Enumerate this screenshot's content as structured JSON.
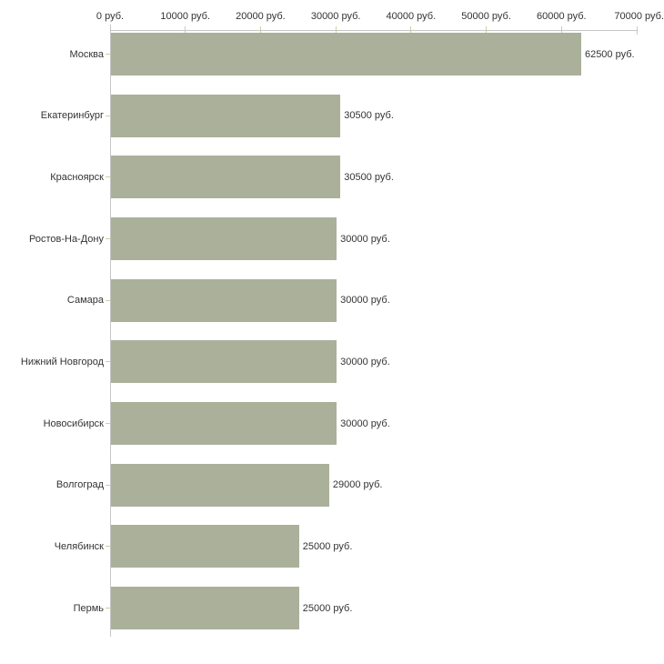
{
  "chart_data": {
    "type": "bar",
    "orientation": "horizontal",
    "title": "",
    "categories": [
      "Москва",
      "Екатеринбург",
      "Красноярск",
      "Ростов-На-Дону",
      "Самара",
      "Нижний Новгород",
      "Новосибирск",
      "Волгоград",
      "Челябинск",
      "Пермь"
    ],
    "values": [
      62500,
      30500,
      30500,
      30000,
      30000,
      30000,
      30000,
      29000,
      25000,
      25000
    ],
    "value_labels": [
      "62500 руб.",
      "30500 руб.",
      "30500 руб.",
      "30000 руб.",
      "30000 руб.",
      "30000 руб.",
      "30000 руб.",
      "29000 руб.",
      "25000 руб.",
      "25000 руб."
    ],
    "x_axis": {
      "position": "top",
      "range": [
        0,
        70000
      ],
      "ticks": [
        0,
        10000,
        20000,
        30000,
        40000,
        50000,
        60000,
        70000
      ],
      "tick_labels": [
        "0 руб.",
        "10000 руб.",
        "20000 руб.",
        "30000 руб.",
        "40000 руб.",
        "50000 руб.",
        "60000 руб.",
        "70000 руб."
      ]
    },
    "grid": false,
    "legend": false,
    "colors": {
      "bar": "#abb09a",
      "axis_line": "#c6c6c6",
      "tick": "#cfcf9e",
      "text": "#333333",
      "background": "#ffffff"
    }
  }
}
